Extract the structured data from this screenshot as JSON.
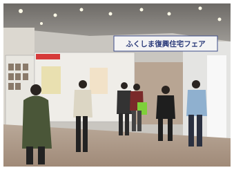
{
  "sign": {
    "text": "ふくしま復興住宅フェア"
  }
}
